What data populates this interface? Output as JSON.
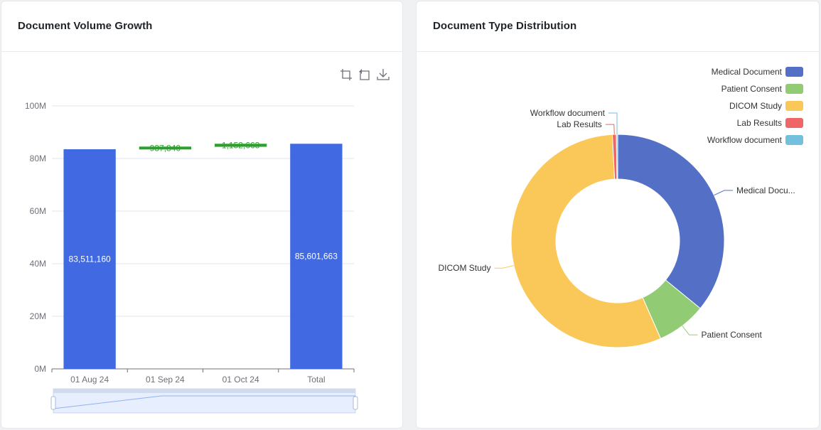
{
  "left_card": {
    "title": "Document Volume Growth",
    "toolbox": {
      "zoom_icon": "zoom-select-icon",
      "restore_icon": "restore-icon",
      "download_icon": "download-icon"
    }
  },
  "right_card": {
    "title": "Document Type Distribution"
  },
  "colors": {
    "bar_blue": "#4169e1",
    "bar_green": "#2ca02c",
    "medical": "#5470c6",
    "consent": "#91cc75",
    "dicom": "#fac858",
    "lab": "#ee6666",
    "workflow": "#73c0de"
  },
  "chart_data": [
    {
      "type": "bar",
      "subtype": "waterfall",
      "title": "Document Volume Growth",
      "categories": [
        "01 Aug 24",
        "01 Sep 24",
        "01 Oct 24",
        "Total"
      ],
      "series": [
        {
          "values": [
            83511160,
            null,
            null,
            85601663
          ],
          "labels": [
            "83,511,160",
            "",
            "",
            "85,601,663"
          ]
        },
        {
          "values": [
            null,
            937840,
            1152663,
            null
          ],
          "labels": [
            "",
            "937,840",
            "1,152,663",
            ""
          ]
        }
      ],
      "ytick_labels": [
        "0M",
        "20M",
        "40M",
        "60M",
        "80M",
        "100M"
      ],
      "ylim": [
        0,
        100000000
      ],
      "grid": true,
      "datazoom": true
    },
    {
      "type": "pie",
      "subtype": "donut",
      "title": "Document Type Distribution",
      "legend_position": "top-right",
      "slices": [
        {
          "name": "Medical Document",
          "label": "Medical Docu...",
          "value": 35.9
        },
        {
          "name": "Patient Consent",
          "label": "Patient Consent",
          "value": 7.5
        },
        {
          "name": "DICOM Study",
          "label": "DICOM Study",
          "value": 55.8
        },
        {
          "name": "Lab Results",
          "label": "Lab Results",
          "value": 0.6
        },
        {
          "name": "Workflow document",
          "label": "Workflow document",
          "value": 0.2
        }
      ]
    }
  ]
}
